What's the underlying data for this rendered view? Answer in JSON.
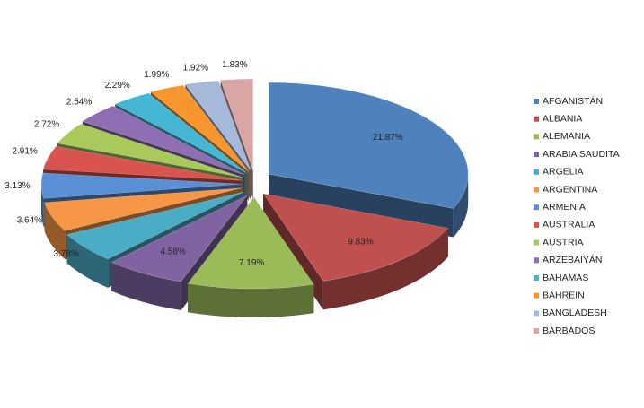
{
  "chart_data": {
    "type": "pie",
    "categories": [
      "AFGANISTÁN",
      "ALBANIA",
      "ALEMANIA",
      "ARABIA SAUDITA",
      "ARGELIA",
      "ARGENTINA",
      "ARMENIA",
      "AUSTRALIA",
      "AUSTRIA",
      "ARZEBAIYÁN",
      "BAHAMAS",
      "BAHREIN",
      "BANGLADESH",
      "BARBADOS"
    ],
    "values": [
      21.87,
      9.83,
      7.19,
      4.58,
      3.78,
      3.64,
      3.13,
      2.91,
      2.72,
      2.54,
      2.29,
      1.99,
      1.92,
      1.83
    ],
    "value_labels": [
      "21.87%",
      "9.83%",
      "7.19%",
      "4.58%",
      "3.78%",
      "3.64%",
      "3.13%",
      "2.91%",
      "2.72%",
      "2.54%",
      "2.29%",
      "1.99%",
      "1.92%",
      "1.83%"
    ],
    "colors": [
      "#4f81bd",
      "#c0504d",
      "#9bbb59",
      "#8064a2",
      "#4bacc6",
      "#f79646",
      "#5a8fd6",
      "#d9534f",
      "#a9c95b",
      "#8f6fb3",
      "#45b6d3",
      "#f7962f",
      "#a7b9da",
      "#d9a6a6"
    ],
    "legend": "right"
  }
}
